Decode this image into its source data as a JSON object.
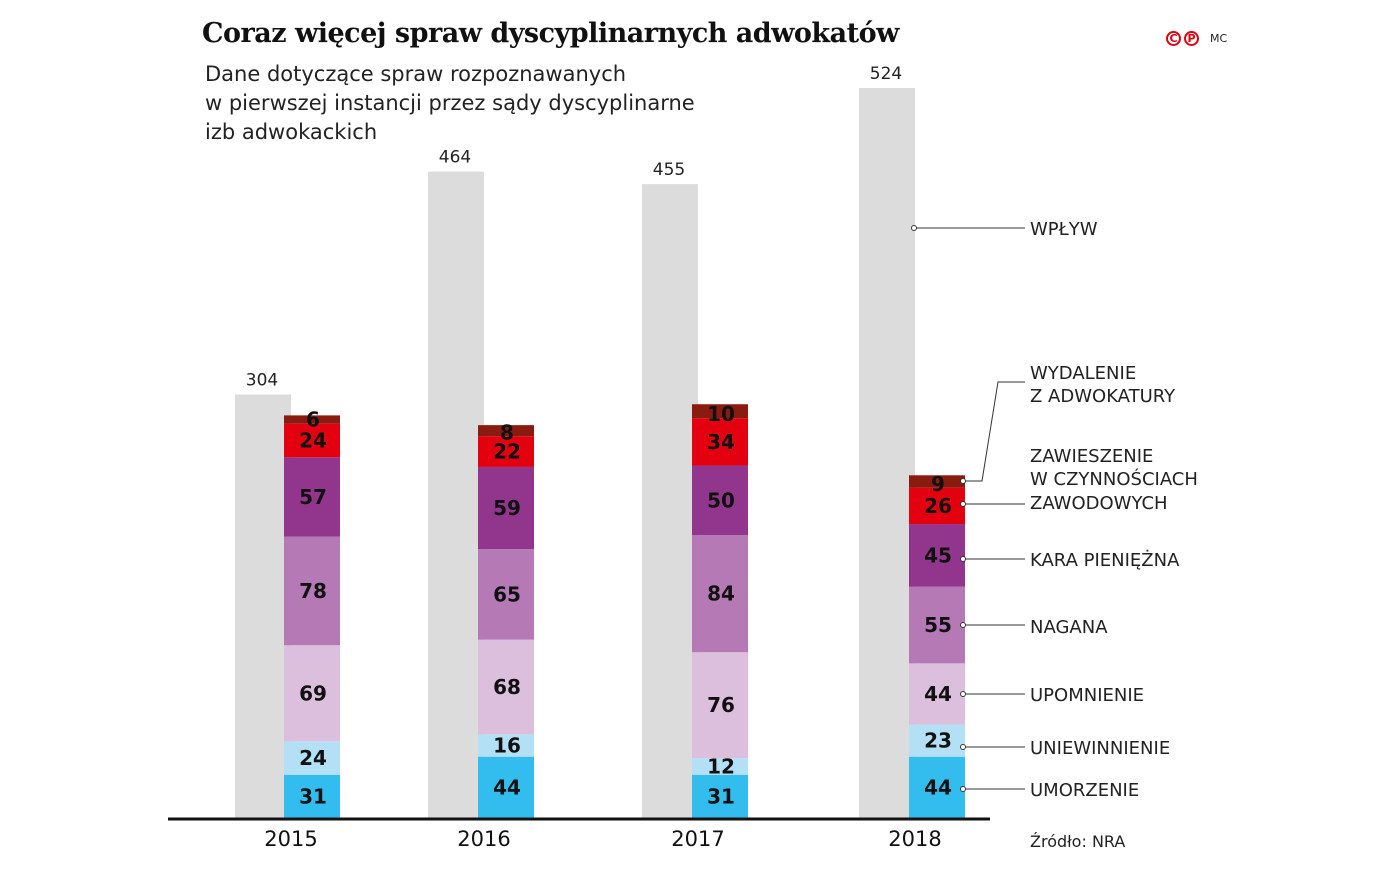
{
  "title": "Coraz więcej spraw dyscyplinarnych adwokatów",
  "subtitle_lines": [
    "Dane dotyczące spraw rozpoznawanych",
    "w pierwszej instancji przez sądy dyscyplinarne",
    "izb adwokackich"
  ],
  "logo": {
    "c": "C",
    "p": "P",
    "author": "MC"
  },
  "source": "Źródło: NRA",
  "chart_data": {
    "type": "bar",
    "title": "Coraz więcej spraw dyscyplinarnych adwokatów",
    "categories": [
      "2015",
      "2016",
      "2017",
      "2018"
    ],
    "inflow": {
      "name": "WPŁYW",
      "values": [
        304,
        464,
        455,
        524
      ],
      "color": "#dcdcdc"
    },
    "stacked_series": [
      {
        "name": "UMORZENIE",
        "label_lines": [
          "UMORZENIE"
        ],
        "values": [
          31,
          44,
          31,
          44
        ],
        "color": "#33bdef"
      },
      {
        "name": "UNIEWINNIENIE",
        "label_lines": [
          "UNIEWINNIENIE"
        ],
        "values": [
          24,
          16,
          12,
          23
        ],
        "color": "#b3e0f5"
      },
      {
        "name": "UPOMNIENIE",
        "label_lines": [
          "UPOMNIENIE"
        ],
        "values": [
          69,
          68,
          76,
          44
        ],
        "color": "#dcbfdc"
      },
      {
        "name": "NAGANA",
        "label_lines": [
          "NAGANA"
        ],
        "values": [
          78,
          65,
          84,
          55
        ],
        "color": "#b57ab5"
      },
      {
        "name": "KARA PIENIĘŻNA",
        "label_lines": [
          "KARA PIENIĘŻNA"
        ],
        "values": [
          57,
          59,
          50,
          45
        ],
        "color": "#92358c"
      },
      {
        "name": "ZAWIESZENIE W CZYNNOŚCIACH ZAWODOWYCH",
        "label_lines": [
          "ZAWIESZENIE",
          "W CZYNNOŚCIACH",
          "ZAWODOWYCH"
        ],
        "values": [
          24,
          22,
          34,
          26
        ],
        "color": "#e3000f"
      },
      {
        "name": "WYDALENIE Z ADWOKATURY",
        "label_lines": [
          "WYDALENIE",
          "Z ADWOKATURY"
        ],
        "values": [
          6,
          8,
          10,
          9
        ],
        "color": "#8b1a10"
      }
    ],
    "ylim": [
      0,
      524
    ],
    "grid": false,
    "legend": "right, labels connected to 2018 bars"
  }
}
